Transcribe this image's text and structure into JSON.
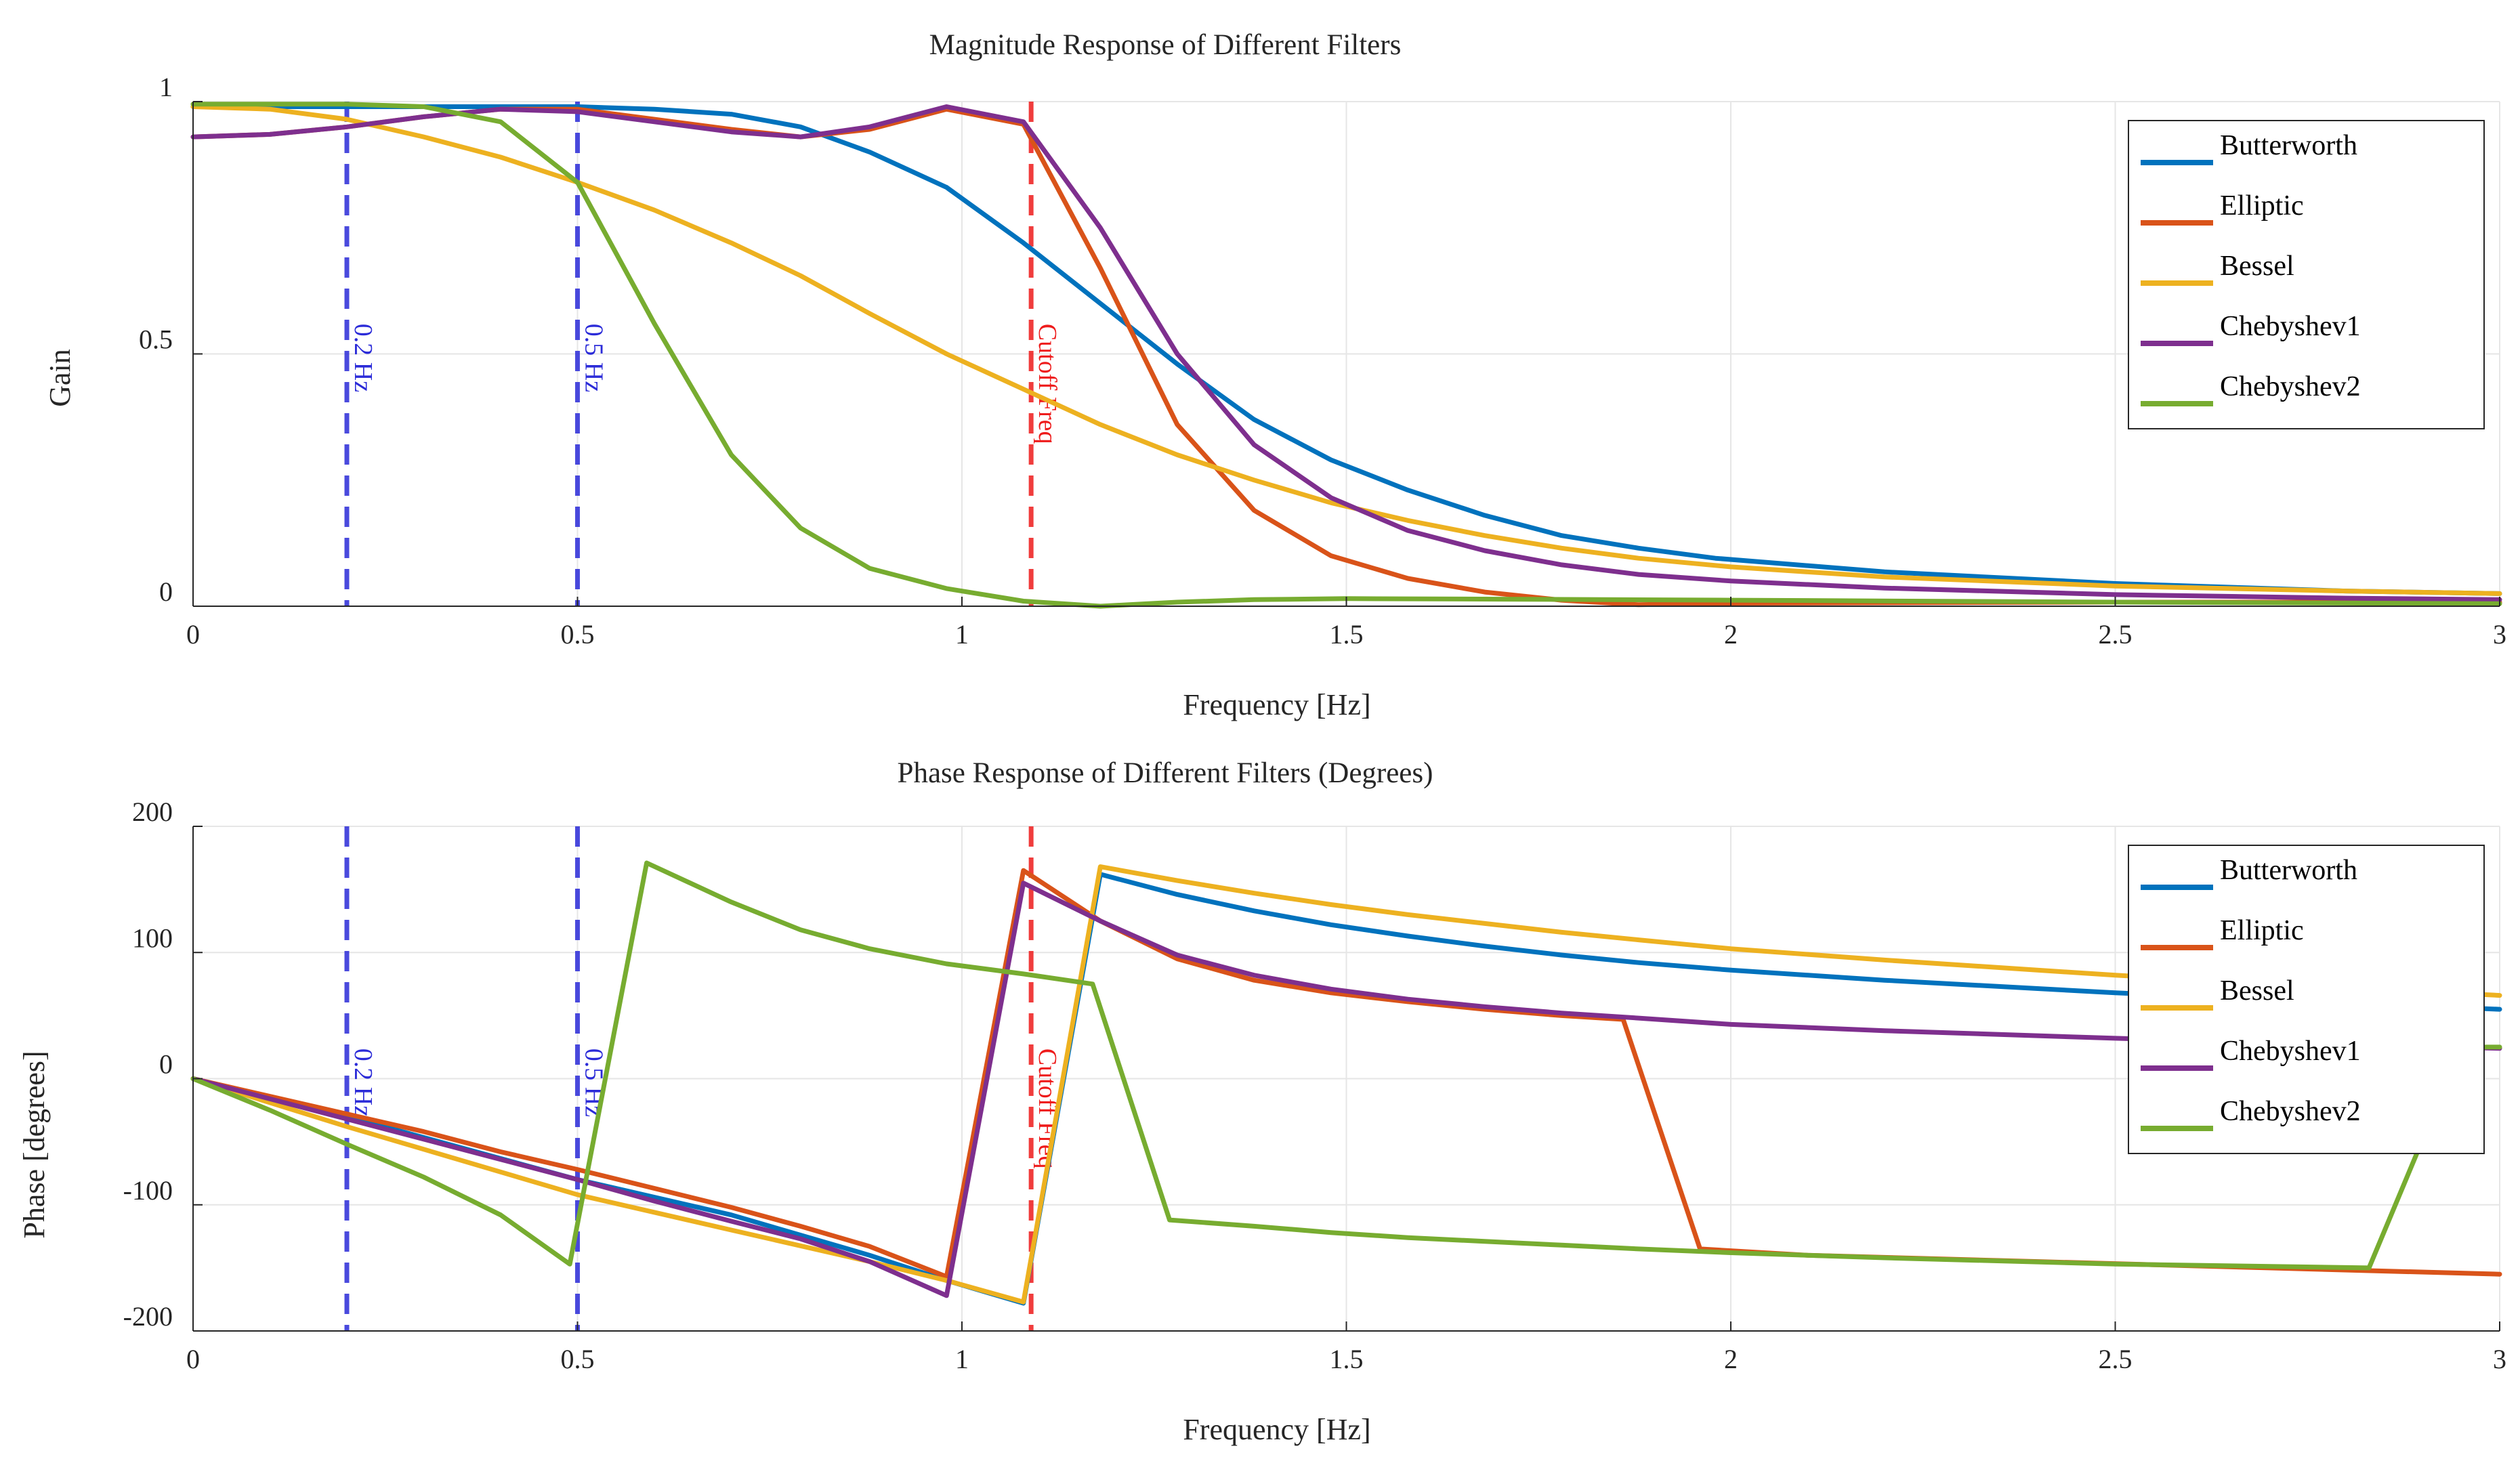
{
  "chart_data": [
    {
      "type": "line",
      "id": "magnitude",
      "title": "Magnitude Response of Different Filters",
      "xlabel": "Frequency [Hz]",
      "ylabel": "Gain",
      "xlim": [
        0,
        3
      ],
      "ylim": [
        0,
        1
      ],
      "xticks": [
        0,
        0.5,
        1,
        1.5,
        2,
        2.5,
        3
      ],
      "xtick_labels": [
        "0",
        "0.5",
        "1",
        "1.5",
        "2",
        "2.5",
        "3"
      ],
      "yticks": [
        0,
        0.5,
        1
      ],
      "ytick_labels": [
        "0",
        "0.5",
        "1"
      ],
      "grid": true,
      "legend_position": "top-right",
      "markers": [
        {
          "x": 0.2,
          "label": "0.2 Hz",
          "color": "#2b2bd8"
        },
        {
          "x": 0.5,
          "label": "0.5 Hz",
          "color": "#2b2bd8"
        },
        {
          "x": 1.09,
          "label": "Cutoff Freq",
          "color": "#ee1b1b"
        }
      ],
      "series": [
        {
          "name": "Butterworth",
          "color": "#0072BD",
          "points": [
            [
              0,
              0.99
            ],
            [
              0.2,
              0.99
            ],
            [
              0.4,
              0.99
            ],
            [
              0.5,
              0.99
            ],
            [
              0.6,
              0.985
            ],
            [
              0.7,
              0.975
            ],
            [
              0.79,
              0.95
            ],
            [
              0.88,
              0.9
            ],
            [
              0.98,
              0.83
            ],
            [
              1.08,
              0.72
            ],
            [
              1.18,
              0.6
            ],
            [
              1.28,
              0.48
            ],
            [
              1.38,
              0.37
            ],
            [
              1.48,
              0.29
            ],
            [
              1.58,
              0.23
            ],
            [
              1.68,
              0.18
            ],
            [
              1.78,
              0.14
            ],
            [
              1.88,
              0.115
            ],
            [
              1.98,
              0.095
            ],
            [
              2.2,
              0.068
            ],
            [
              2.5,
              0.045
            ],
            [
              2.8,
              0.03
            ],
            [
              3,
              0.025
            ]
          ]
        },
        {
          "name": "Elliptic",
          "color": "#D95319",
          "points": [
            [
              0,
              0.93
            ],
            [
              0.1,
              0.935
            ],
            [
              0.2,
              0.95
            ],
            [
              0.3,
              0.97
            ],
            [
              0.4,
              0.985
            ],
            [
              0.5,
              0.985
            ],
            [
              0.6,
              0.965
            ],
            [
              0.7,
              0.945
            ],
            [
              0.79,
              0.93
            ],
            [
              0.88,
              0.945
            ],
            [
              0.98,
              0.985
            ],
            [
              1.08,
              0.955
            ],
            [
              1.18,
              0.67
            ],
            [
              1.28,
              0.36
            ],
            [
              1.38,
              0.19
            ],
            [
              1.48,
              0.1
            ],
            [
              1.58,
              0.055
            ],
            [
              1.68,
              0.028
            ],
            [
              1.78,
              0.012
            ],
            [
              1.88,
              0.003
            ],
            [
              2,
              0.006
            ],
            [
              2.5,
              0.008
            ],
            [
              3,
              0.008
            ]
          ]
        },
        {
          "name": "Bessel",
          "color": "#EDB120",
          "points": [
            [
              0,
              0.99
            ],
            [
              0.1,
              0.985
            ],
            [
              0.2,
              0.965
            ],
            [
              0.3,
              0.93
            ],
            [
              0.4,
              0.89
            ],
            [
              0.5,
              0.84
            ],
            [
              0.6,
              0.785
            ],
            [
              0.7,
              0.72
            ],
            [
              0.79,
              0.655
            ],
            [
              0.88,
              0.58
            ],
            [
              0.98,
              0.5
            ],
            [
              1.08,
              0.43
            ],
            [
              1.18,
              0.36
            ],
            [
              1.28,
              0.3
            ],
            [
              1.38,
              0.25
            ],
            [
              1.48,
              0.205
            ],
            [
              1.58,
              0.17
            ],
            [
              1.68,
              0.14
            ],
            [
              1.78,
              0.115
            ],
            [
              1.88,
              0.095
            ],
            [
              2,
              0.078
            ],
            [
              2.2,
              0.058
            ],
            [
              2.5,
              0.04
            ],
            [
              2.8,
              0.03
            ],
            [
              3,
              0.025
            ]
          ]
        },
        {
          "name": "Chebyshev1",
          "color": "#7E2F8E",
          "points": [
            [
              0,
              0.93
            ],
            [
              0.1,
              0.935
            ],
            [
              0.2,
              0.95
            ],
            [
              0.3,
              0.97
            ],
            [
              0.4,
              0.985
            ],
            [
              0.5,
              0.98
            ],
            [
              0.6,
              0.96
            ],
            [
              0.7,
              0.94
            ],
            [
              0.79,
              0.93
            ],
            [
              0.88,
              0.95
            ],
            [
              0.98,
              0.99
            ],
            [
              1.08,
              0.96
            ],
            [
              1.18,
              0.75
            ],
            [
              1.28,
              0.5
            ],
            [
              1.38,
              0.32
            ],
            [
              1.48,
              0.215
            ],
            [
              1.58,
              0.15
            ],
            [
              1.68,
              0.11
            ],
            [
              1.78,
              0.082
            ],
            [
              1.88,
              0.063
            ],
            [
              2,
              0.05
            ],
            [
              2.2,
              0.036
            ],
            [
              2.5,
              0.023
            ],
            [
              2.8,
              0.016
            ],
            [
              3,
              0.013
            ]
          ]
        },
        {
          "name": "Chebyshev2",
          "color": "#77AC30",
          "points": [
            [
              0,
              0.995
            ],
            [
              0.1,
              0.995
            ],
            [
              0.2,
              0.995
            ],
            [
              0.3,
              0.99
            ],
            [
              0.4,
              0.96
            ],
            [
              0.5,
              0.84
            ],
            [
              0.6,
              0.56
            ],
            [
              0.7,
              0.3
            ],
            [
              0.79,
              0.155
            ],
            [
              0.88,
              0.075
            ],
            [
              0.98,
              0.035
            ],
            [
              1.08,
              0.01
            ],
            [
              1.18,
              0.0
            ],
            [
              1.28,
              0.008
            ],
            [
              1.38,
              0.013
            ],
            [
              1.5,
              0.015
            ],
            [
              1.7,
              0.014
            ],
            [
              2,
              0.012
            ],
            [
              2.5,
              0.008
            ],
            [
              3,
              0.005
            ]
          ]
        }
      ]
    },
    {
      "type": "line",
      "id": "phase",
      "title": "Phase Response of Different Filters (Degrees)",
      "xlabel": "Frequency [Hz]",
      "ylabel": "Phase [degrees]",
      "xlim": [
        0,
        3
      ],
      "ylim": [
        -200,
        200
      ],
      "xticks": [
        0,
        0.5,
        1,
        1.5,
        2,
        2.5,
        3
      ],
      "xtick_labels": [
        "0",
        "0.5",
        "1",
        "1.5",
        "2",
        "2.5",
        "3"
      ],
      "yticks": [
        -200,
        -100,
        0,
        100,
        200
      ],
      "ytick_labels": [
        "-200",
        "-100",
        "0",
        "100",
        "200"
      ],
      "grid": true,
      "legend_position": "top-right",
      "markers": [
        {
          "x": 0.2,
          "label": "0.2 Hz",
          "color": "#2b2bd8"
        },
        {
          "x": 0.5,
          "label": "0.5 Hz",
          "color": "#2b2bd8"
        },
        {
          "x": 1.09,
          "label": "Cutoff Freq",
          "color": "#ee1b1b"
        }
      ],
      "series": [
        {
          "name": "Butterworth",
          "color": "#0072BD",
          "points": [
            [
              0,
              0
            ],
            [
              0.2,
              -30
            ],
            [
              0.5,
              -80
            ],
            [
              0.7,
              -108
            ],
            [
              0.88,
              -140
            ],
            [
              0.98,
              -160
            ],
            [
              1.08,
              -178
            ],
            [
              1.18,
              162
            ],
            [
              1.28,
              146
            ],
            [
              1.38,
              133
            ],
            [
              1.48,
              122
            ],
            [
              1.58,
              113
            ],
            [
              1.68,
              105
            ],
            [
              1.78,
              98
            ],
            [
              1.88,
              92
            ],
            [
              2,
              86
            ],
            [
              2.2,
              78
            ],
            [
              2.5,
              68
            ],
            [
              2.8,
              60
            ],
            [
              3,
              55
            ]
          ]
        },
        {
          "name": "Elliptic",
          "color": "#D95319",
          "points": [
            [
              0,
              0
            ],
            [
              0.2,
              -28
            ],
            [
              0.3,
              -42
            ],
            [
              0.4,
              -58
            ],
            [
              0.5,
              -72
            ],
            [
              0.6,
              -87
            ],
            [
              0.7,
              -102
            ],
            [
              0.79,
              -117
            ],
            [
              0.88,
              -133
            ],
            [
              0.98,
              -157
            ],
            [
              1.08,
              165
            ],
            [
              1.18,
              125
            ],
            [
              1.28,
              95
            ],
            [
              1.38,
              78
            ],
            [
              1.48,
              68
            ],
            [
              1.58,
              61
            ],
            [
              1.68,
              55
            ],
            [
              1.78,
              50
            ],
            [
              1.86,
              47
            ],
            [
              1.96,
              -135
            ],
            [
              2.1,
              -140
            ],
            [
              2.4,
              -145
            ],
            [
              2.7,
              -150
            ],
            [
              3,
              -155
            ]
          ]
        },
        {
          "name": "Bessel",
          "color": "#EDB120",
          "points": [
            [
              0,
              0
            ],
            [
              0.2,
              -38
            ],
            [
              0.5,
              -92
            ],
            [
              0.7,
              -120
            ],
            [
              0.88,
              -145
            ],
            [
              0.98,
              -160
            ],
            [
              1.08,
              -177
            ],
            [
              1.18,
              168
            ],
            [
              1.28,
              157
            ],
            [
              1.38,
              147
            ],
            [
              1.48,
              138
            ],
            [
              1.58,
              130
            ],
            [
              1.68,
              123
            ],
            [
              1.78,
              116
            ],
            [
              1.88,
              110
            ],
            [
              2,
              103
            ],
            [
              2.2,
              94
            ],
            [
              2.5,
              82
            ],
            [
              2.8,
              72
            ],
            [
              3,
              66
            ]
          ]
        },
        {
          "name": "Chebyshev1",
          "color": "#7E2F8E",
          "points": [
            [
              0,
              0
            ],
            [
              0.2,
              -32
            ],
            [
              0.3,
              -48
            ],
            [
              0.4,
              -64
            ],
            [
              0.5,
              -80
            ],
            [
              0.6,
              -97
            ],
            [
              0.7,
              -113
            ],
            [
              0.79,
              -127
            ],
            [
              0.88,
              -145
            ],
            [
              0.98,
              -172
            ],
            [
              1.08,
              155
            ],
            [
              1.18,
              125
            ],
            [
              1.28,
              98
            ],
            [
              1.38,
              82
            ],
            [
              1.48,
              71
            ],
            [
              1.58,
              63
            ],
            [
              1.68,
              57
            ],
            [
              1.78,
              52
            ],
            [
              1.88,
              48
            ],
            [
              2,
              43
            ],
            [
              2.2,
              38
            ],
            [
              2.5,
              32
            ],
            [
              2.8,
              27
            ],
            [
              3,
              24
            ]
          ]
        },
        {
          "name": "Chebyshev2",
          "color": "#77AC30",
          "points": [
            [
              0,
              0
            ],
            [
              0.1,
              -25
            ],
            [
              0.2,
              -52
            ],
            [
              0.3,
              -78
            ],
            [
              0.4,
              -108
            ],
            [
              0.49,
              -147
            ],
            [
              0.59,
              171
            ],
            [
              0.7,
              140
            ],
            [
              0.79,
              118
            ],
            [
              0.88,
              103
            ],
            [
              0.98,
              91
            ],
            [
              1.08,
              83
            ],
            [
              1.17,
              75
            ],
            [
              1.27,
              -112
            ],
            [
              1.38,
              -117
            ],
            [
              1.48,
              -122
            ],
            [
              1.58,
              -126
            ],
            [
              1.68,
              -129
            ],
            [
              1.78,
              -132
            ],
            [
              1.88,
              -135
            ],
            [
              2,
              -138
            ],
            [
              2.2,
              -142
            ],
            [
              2.5,
              -147
            ],
            [
              2.83,
              -150
            ],
            [
              2.95,
              25
            ],
            [
              3,
              25
            ]
          ]
        }
      ]
    }
  ]
}
